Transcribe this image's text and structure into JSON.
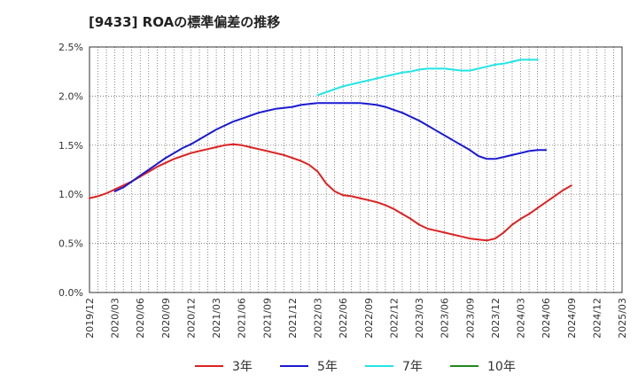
{
  "chart_data": {
    "type": "line",
    "title": "[9433]  ROAの標準偏差の推移",
    "xlabel": "",
    "ylabel": "",
    "x_ticks": [
      "2019/12",
      "2020/03",
      "2020/06",
      "2020/09",
      "2020/12",
      "2021/03",
      "2021/06",
      "2021/09",
      "2021/12",
      "2022/03",
      "2022/06",
      "2022/09",
      "2022/12",
      "2023/03",
      "2023/06",
      "2023/09",
      "2023/12",
      "2024/03",
      "2024/06",
      "2024/09",
      "2024/12",
      "2025/03"
    ],
    "y_ticks": [
      "0.0%",
      "0.5%",
      "1.0%",
      "1.5%",
      "2.0%",
      "2.5%"
    ],
    "ylim": [
      0,
      2.5
    ],
    "grid": true,
    "legend_position": "bottom",
    "series": [
      {
        "name": "3年",
        "color": "#dd2222",
        "start_index": 0,
        "values": [
          0.96,
          0.98,
          1.01,
          1.05,
          1.09,
          1.13,
          1.18,
          1.23,
          1.28,
          1.32,
          1.36,
          1.39,
          1.42,
          1.44,
          1.46,
          1.48,
          1.5,
          1.51,
          1.5,
          1.48,
          1.46,
          1.44,
          1.42,
          1.4,
          1.37,
          1.34,
          1.3,
          1.23,
          1.11,
          1.03,
          0.99,
          0.98,
          0.96,
          0.94,
          0.92,
          0.89,
          0.85,
          0.8,
          0.75,
          0.69,
          0.65,
          0.63,
          0.61,
          0.59,
          0.57,
          0.55,
          0.54,
          0.53,
          0.55,
          0.61,
          0.69,
          0.75,
          0.8,
          0.86,
          0.92,
          0.98,
          1.04,
          1.09
        ]
      },
      {
        "name": "5年",
        "color": "#1a1ad1",
        "start_index": 3,
        "values": [
          1.03,
          1.07,
          1.13,
          1.19,
          1.25,
          1.31,
          1.37,
          1.42,
          1.47,
          1.51,
          1.56,
          1.61,
          1.66,
          1.7,
          1.74,
          1.77,
          1.8,
          1.83,
          1.85,
          1.87,
          1.88,
          1.89,
          1.91,
          1.92,
          1.93,
          1.93,
          1.93,
          1.93,
          1.93,
          1.93,
          1.92,
          1.91,
          1.89,
          1.86,
          1.83,
          1.79,
          1.75,
          1.7,
          1.65,
          1.6,
          1.55,
          1.5,
          1.45,
          1.39,
          1.36,
          1.36,
          1.38,
          1.4,
          1.42,
          1.44,
          1.45,
          1.45
        ]
      },
      {
        "name": "7年",
        "color": "#22e5e5",
        "start_index": 27,
        "values": [
          2.01,
          2.04,
          2.07,
          2.1,
          2.12,
          2.14,
          2.16,
          2.18,
          2.2,
          2.22,
          2.24,
          2.25,
          2.27,
          2.28,
          2.28,
          2.28,
          2.27,
          2.26,
          2.26,
          2.28,
          2.3,
          2.32,
          2.33,
          2.35,
          2.37,
          2.37,
          2.37
        ]
      },
      {
        "name": "10年",
        "color": "#1f8a1f",
        "start_index": null,
        "values": []
      }
    ]
  }
}
